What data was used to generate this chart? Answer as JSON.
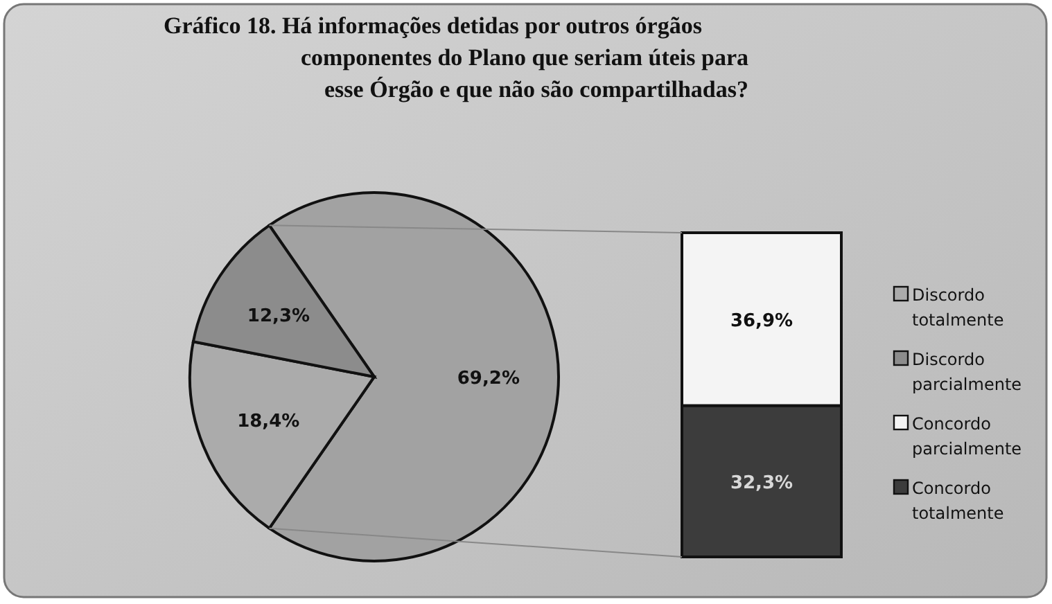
{
  "chart_data": [
    {
      "type": "pie",
      "title": "Gráfico 18. Há informações detidas por outros órgãos\ncomponentes do Plano que seriam úteis para\nesse Órgão e que não são compartilhadas?",
      "categories": [
        null,
        "Discordo totalmente",
        "Discordo parcialmente"
      ],
      "values": [
        69.2,
        18.4,
        12.3
      ],
      "colors": [
        "#a2a2a2",
        "#ababab",
        "#8c8c8c"
      ],
      "value_labels": [
        "69,2%",
        "18,4%",
        "12,3%"
      ],
      "legend": "right"
    },
    {
      "type": "bar",
      "stacked": true,
      "categories": [
        null
      ],
      "ylim": [
        0,
        69.2
      ],
      "tick_labels": false,
      "legend": "right",
      "series": [
        {
          "name": "Concordo totalmente",
          "color": "#3c3c3c",
          "values": [
            32.3
          ],
          "value_labels": [
            "32,3%"
          ]
        },
        {
          "name": "Concordo parcialmente",
          "color": "#f4f4f4",
          "values": [
            36.9
          ],
          "value_labels": [
            "36,9%"
          ]
        }
      ]
    }
  ]
}
